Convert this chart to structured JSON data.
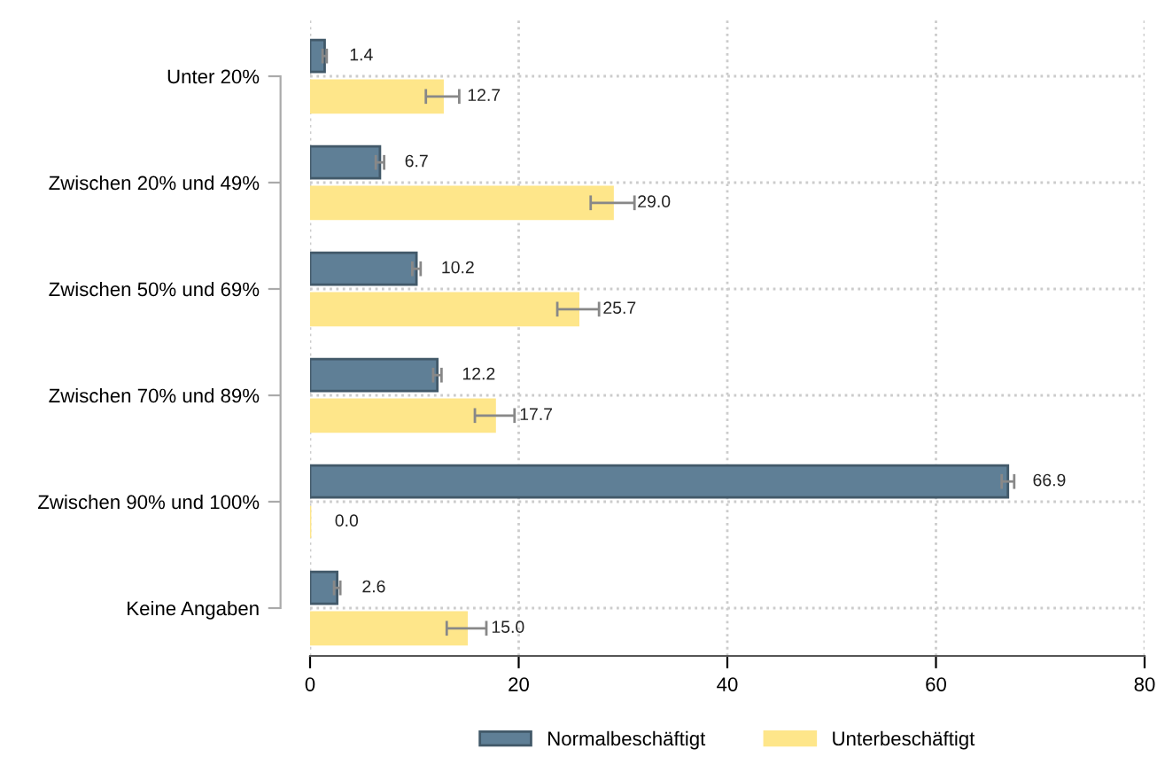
{
  "chart_data": {
    "type": "bar",
    "orientation": "horizontal",
    "categories": [
      "Unter 20%",
      "Zwischen 20% und 49%",
      "Zwischen 50% und 69%",
      "Zwischen 70% und 89%",
      "Zwischen 90% und 100%",
      "Keine Angaben"
    ],
    "series": [
      {
        "name": "Normalbeschäftigt",
        "color": "#5f7f96",
        "values": [
          1.4,
          6.7,
          10.2,
          12.2,
          66.9,
          2.6
        ],
        "errors": [
          0.2,
          0.4,
          0.4,
          0.4,
          0.6,
          0.3
        ],
        "value_labels": [
          "1.4",
          "6.7",
          "10.2",
          "12.2",
          "66.9",
          "2.6"
        ]
      },
      {
        "name": "Unterbeschäftigt",
        "color": "#fee68a",
        "values": [
          12.7,
          29.0,
          25.7,
          17.7,
          0.0,
          15.0
        ],
        "errors": [
          1.6,
          2.1,
          2.0,
          1.9,
          null,
          1.9
        ],
        "value_labels": [
          "12.7",
          "29.0",
          "25.7",
          "17.7",
          "0.0",
          "15.0"
        ]
      }
    ],
    "xlim": [
      0,
      80
    ],
    "xticks": [
      0,
      20,
      40,
      60,
      80
    ],
    "grid": true,
    "legend": "bottom"
  }
}
